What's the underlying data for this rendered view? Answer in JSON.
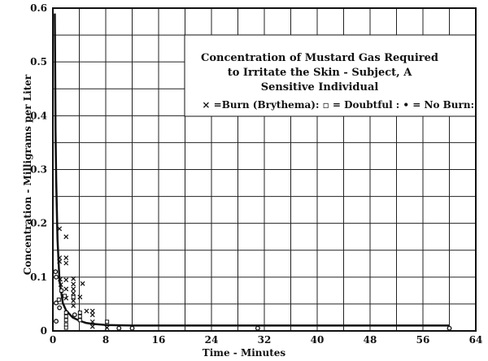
{
  "chart_data": {
    "type": "scatter",
    "title_lines": [
      "Concentration of Mustard Gas Required",
      "to Irritate the Skin - Subject, A",
      "Sensitive Individual"
    ],
    "legend_text": "× =Burn (Brythema): ▫ = Doubtful : • = No Burn:",
    "xlabel": "Time - Minutes",
    "ylabel": "Concentration - Milligrams per Liter",
    "xlim": [
      0,
      64
    ],
    "ylim": [
      0,
      0.6
    ],
    "xticks": [
      "0",
      "8",
      "16",
      "24",
      "32",
      "40",
      "48",
      "56",
      "64"
    ],
    "yticks": [
      "0",
      "0.1",
      "0.2",
      "0.3",
      "0.4",
      "0.5",
      "0.6"
    ],
    "grid": true,
    "legend_placement": "top-right",
    "series": [
      {
        "marker": "x",
        "points": [
          [
            1.0,
            0.19
          ],
          [
            2.0,
            0.175
          ],
          [
            1.0,
            0.136
          ],
          [
            2.0,
            0.136
          ],
          [
            1.0,
            0.129
          ],
          [
            2.0,
            0.126
          ],
          [
            1.1,
            0.096
          ],
          [
            2.0,
            0.095
          ],
          [
            3.1,
            0.097
          ],
          [
            3.1,
            0.087
          ],
          [
            4.5,
            0.088
          ],
          [
            1.2,
            0.086
          ],
          [
            2.0,
            0.078
          ],
          [
            3.1,
            0.078
          ],
          [
            3.1,
            0.07
          ],
          [
            4.1,
            0.063
          ],
          [
            2.0,
            0.061
          ],
          [
            3.1,
            0.056
          ],
          [
            3.1,
            0.047
          ],
          [
            5.1,
            0.037
          ],
          [
            6.0,
            0.037
          ],
          [
            6.0,
            0.03
          ],
          [
            6.0,
            0.017
          ],
          [
            6.0,
            0.008
          ],
          [
            8.2,
            0.006
          ]
        ]
      },
      {
        "marker": "square",
        "points": [
          [
            1.3,
            0.075
          ],
          [
            1.8,
            0.065
          ],
          [
            0.9,
            0.058
          ],
          [
            2.0,
            0.034
          ],
          [
            2.0,
            0.027
          ],
          [
            2.0,
            0.02
          ],
          [
            2.0,
            0.012
          ],
          [
            2.0,
            0.006
          ],
          [
            3.1,
            0.063
          ],
          [
            4.1,
            0.034
          ],
          [
            4.1,
            0.027
          ],
          [
            4.1,
            0.02
          ],
          [
            8.2,
            0.017
          ]
        ]
      },
      {
        "marker": "dot",
        "points": [
          [
            0.4,
            0.11
          ],
          [
            0.5,
            0.1
          ],
          [
            0.5,
            0.052
          ],
          [
            0.5,
            0.018
          ],
          [
            1.0,
            0.043
          ],
          [
            3.3,
            0.03
          ],
          [
            10.0,
            0.005
          ],
          [
            12.0,
            0.005
          ],
          [
            31.0,
            0.005
          ],
          [
            60.0,
            0.005
          ]
        ]
      }
    ],
    "curve": [
      [
        0.3,
        0.59
      ],
      [
        0.4,
        0.37
      ],
      [
        0.5,
        0.28
      ],
      [
        0.7,
        0.17
      ],
      [
        1,
        0.095
      ],
      [
        1.5,
        0.052
      ],
      [
        2,
        0.038
      ],
      [
        3,
        0.025
      ],
      [
        4,
        0.019
      ],
      [
        5,
        0.015
      ],
      [
        6,
        0.013
      ],
      [
        8,
        0.011
      ],
      [
        12,
        0.01
      ],
      [
        20,
        0.01
      ],
      [
        40,
        0.01
      ],
      [
        60,
        0.01
      ]
    ]
  }
}
